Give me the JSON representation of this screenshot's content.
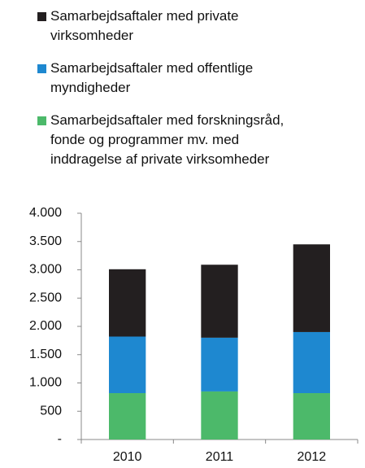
{
  "chart_data": {
    "type": "bar",
    "stacked": true,
    "categories": [
      "2010",
      "2011",
      "2012"
    ],
    "series": [
      {
        "name": "Samarbejdsaftaler med forskningsråd,\nfonde og programmer mv. med\ninddragelse af private virksomheder",
        "color": "#4cb96a",
        "values": [
          820,
          850,
          820
        ]
      },
      {
        "name": "Samarbejdsaftaler med offentlige\nmyndigheder",
        "color": "#1e88d0",
        "values": [
          1000,
          950,
          1080
        ]
      },
      {
        "name": "Samarbejdsaftaler med private\nvirksomheder",
        "color": "#231f20",
        "values": [
          1190,
          1290,
          1550
        ]
      }
    ],
    "ylim": [
      0,
      4000
    ],
    "yticks": [
      {
        "value": 0,
        "label": "-"
      },
      500,
      {
        "value": 1000,
        "label": "1.000"
      },
      {
        "value": 1500,
        "label": "1.500"
      },
      {
        "value": 2000,
        "label": "2.000"
      },
      {
        "value": 2500,
        "label": "2.500"
      },
      {
        "value": 3000,
        "label": "3.000"
      },
      {
        "value": 3500,
        "label": "3.500"
      },
      {
        "value": 4000,
        "label": "4.000"
      }
    ],
    "grid": false
  }
}
